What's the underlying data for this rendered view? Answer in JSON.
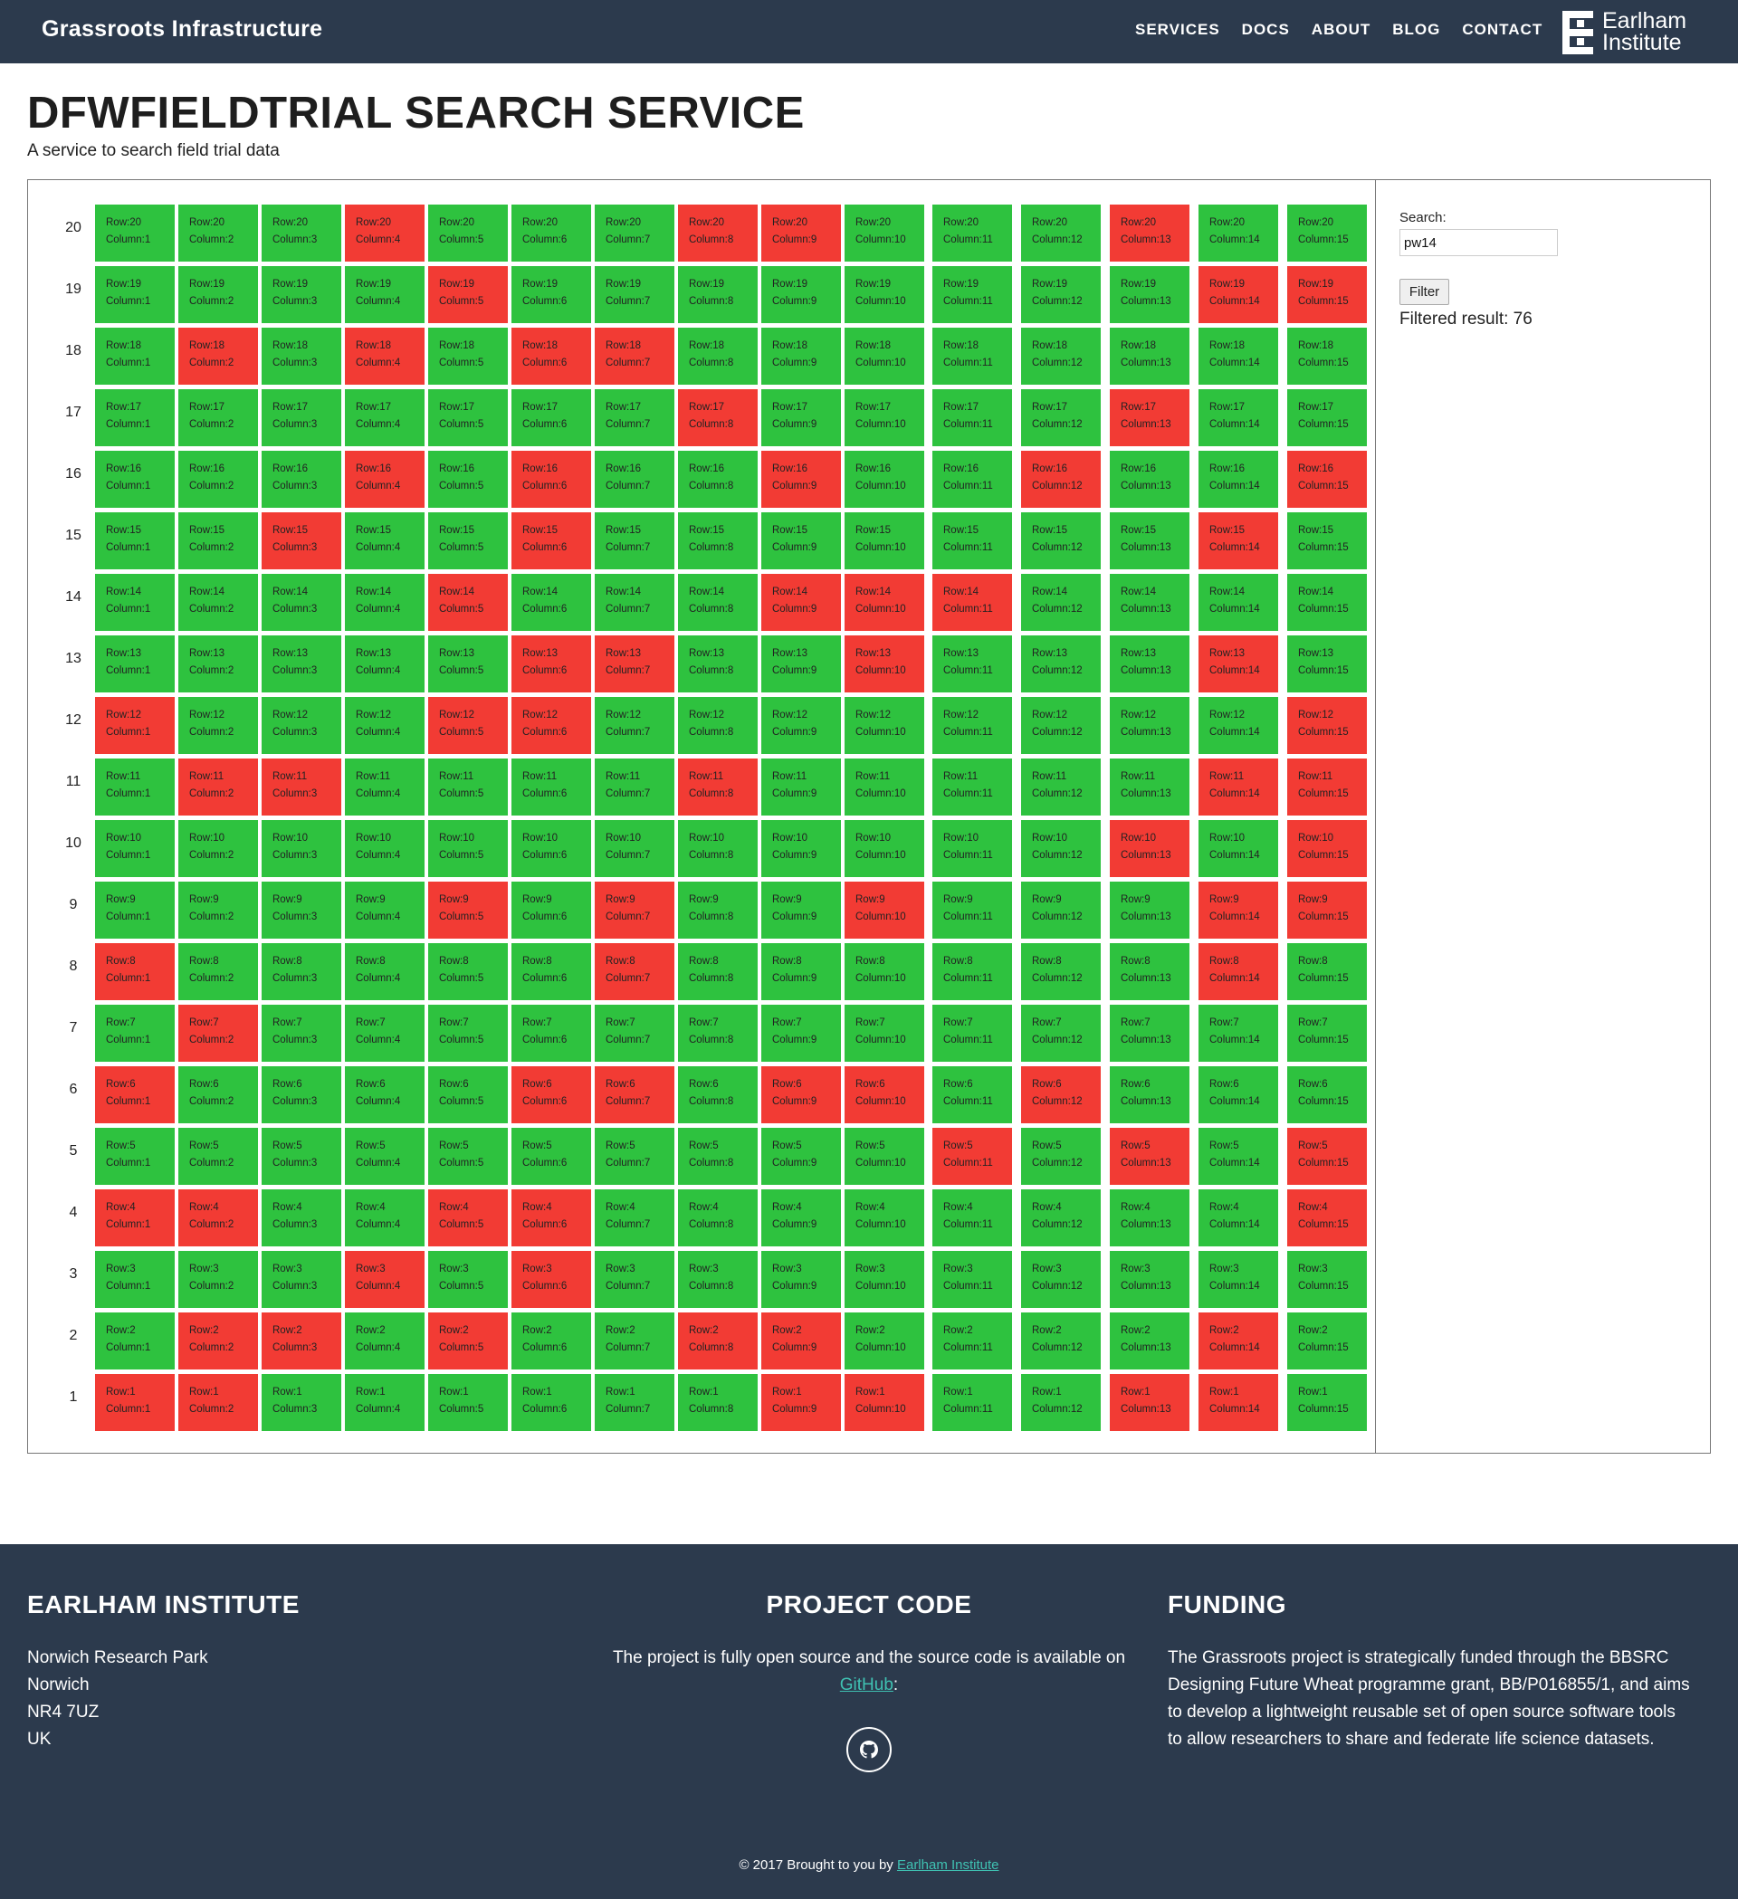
{
  "header": {
    "brand": "Grassroots Infrastructure",
    "nav": [
      "SERVICES",
      "DOCS",
      "ABOUT",
      "BLOG",
      "CONTACT"
    ],
    "logo_line1": "Earlham",
    "logo_line2": "Institute"
  },
  "page": {
    "title": "DFWFIELDTRIAL SEARCH SERVICE",
    "subtitle": "A service to search field trial data"
  },
  "grid": {
    "row_prefix": "Row:",
    "column_prefix": "Column:",
    "colors": {
      "green": "#2ec23f",
      "red": "#f23b34"
    },
    "rows": [
      {
        "row": 20,
        "red_columns": [
          4,
          8,
          9,
          13
        ]
      },
      {
        "row": 19,
        "red_columns": [
          5,
          14,
          15
        ]
      },
      {
        "row": 18,
        "red_columns": [
          2,
          4,
          6,
          7
        ]
      },
      {
        "row": 17,
        "red_columns": [
          8,
          13
        ]
      },
      {
        "row": 16,
        "red_columns": [
          4,
          6,
          9,
          12,
          15
        ]
      },
      {
        "row": 15,
        "red_columns": [
          3,
          6,
          14
        ]
      },
      {
        "row": 14,
        "red_columns": [
          5,
          9,
          10,
          11
        ]
      },
      {
        "row": 13,
        "red_columns": [
          6,
          7,
          10,
          14
        ]
      },
      {
        "row": 12,
        "red_columns": [
          1,
          5,
          6,
          15
        ]
      },
      {
        "row": 11,
        "red_columns": [
          2,
          3,
          8,
          14,
          15
        ]
      },
      {
        "row": 10,
        "red_columns": [
          13,
          15
        ]
      },
      {
        "row": 9,
        "red_columns": [
          5,
          7,
          10,
          14,
          15
        ]
      },
      {
        "row": 8,
        "red_columns": [
          1,
          7,
          14
        ]
      },
      {
        "row": 7,
        "red_columns": [
          2
        ]
      },
      {
        "row": 6,
        "red_columns": [
          1,
          6,
          7,
          9,
          10,
          12
        ]
      },
      {
        "row": 5,
        "red_columns": [
          11,
          13,
          15
        ]
      },
      {
        "row": 4,
        "red_columns": [
          1,
          2,
          5,
          6,
          15
        ]
      },
      {
        "row": 3,
        "red_columns": [
          4,
          6
        ]
      },
      {
        "row": 2,
        "red_columns": [
          2,
          3,
          5,
          8,
          9,
          14
        ]
      },
      {
        "row": 1,
        "red_columns": [
          1,
          2,
          9,
          10,
          13,
          14
        ]
      }
    ],
    "columns": [
      1,
      2,
      3,
      4,
      5,
      6,
      7,
      8,
      9,
      10,
      11,
      12,
      13,
      14,
      15
    ]
  },
  "search": {
    "label": "Search:",
    "value": "pw14",
    "button": "Filter",
    "result": "Filtered result: 76"
  },
  "footer": {
    "institute": {
      "heading": "EARLHAM INSTITUTE",
      "address": [
        "Norwich Research Park",
        "Norwich",
        "NR4 7UZ",
        "UK"
      ]
    },
    "project": {
      "heading": "PROJECT CODE",
      "text": "The project is fully open source and the source code is available on",
      "link": "GitHub",
      "after_link": ":"
    },
    "funding": {
      "heading": "FUNDING",
      "lines": [
        "The Grassroots project is strategically funded through the BBSRC",
        "Designing Future Wheat programme grant, BB/P016855/1, and aims",
        "to develop a lightweight reusable set of open source software tools",
        "to allow researchers to share and federate life science datasets."
      ]
    },
    "copyright_text": "© 2017 Brought to you by",
    "copyright_link": "Earlham Institute"
  }
}
